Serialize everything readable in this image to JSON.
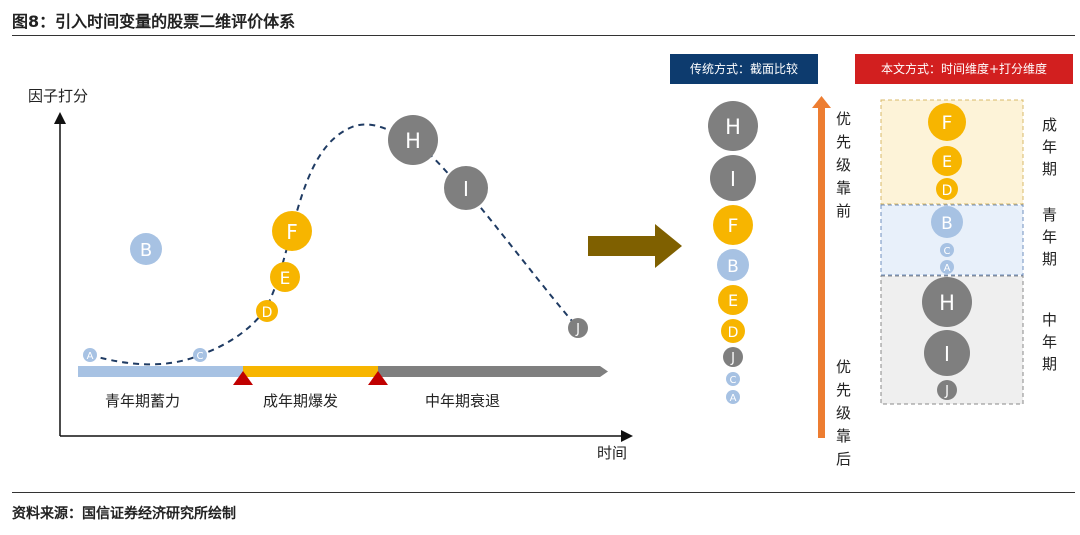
{
  "title": "图8：引入时间变量的股票二维评价体系",
  "source": "资料来源：国信证券经济研究所绘制",
  "axes": {
    "y_label": "因子打分",
    "x_label": "时间"
  },
  "stages": [
    "青年期蓄力",
    "成年期爆发",
    "中年期衰退"
  ],
  "curve_points": [
    "A",
    "B",
    "C",
    "D",
    "E",
    "F",
    "H",
    "I",
    "J"
  ],
  "traditional": {
    "header": "传统方式：截面比较",
    "ranking": [
      "H",
      "I",
      "F",
      "B",
      "E",
      "D",
      "J",
      "C",
      "A"
    ],
    "priority_high_label": "优先级靠前",
    "priority_low_label": "优先级靠后"
  },
  "proposed": {
    "header": "本文方式：时间维度+打分维度",
    "groups": [
      {
        "label": "成年期",
        "items": [
          "F",
          "E",
          "D"
        ]
      },
      {
        "label": "青年期",
        "items": [
          "B",
          "C",
          "A"
        ]
      },
      {
        "label": "中年期",
        "items": [
          "H",
          "I",
          "J"
        ]
      }
    ]
  },
  "colors": {
    "young": "#a7c2e3",
    "adult": "#f7b500",
    "middle": "#7f7f7f",
    "trad_header": "#0d3b6e",
    "new_header": "#d21f1f",
    "arrow": "#7f6000",
    "priority_arrow": "#ed7d31",
    "triangle": "#c00000",
    "curve": "#1f3b63"
  },
  "icons": [
    "right-arrow-icon",
    "up-arrow-icon",
    "stage-boundary-triangle-icon"
  ]
}
